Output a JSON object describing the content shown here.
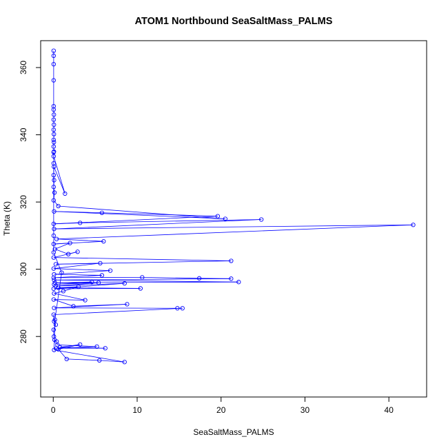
{
  "chart_data": {
    "type": "line",
    "title": "ATOM1 Northbound SeaSaltMass_PALMS",
    "xlabel": "SeaSaltMass_PALMS",
    "ylabel": "Theta (K)",
    "xlim": [
      -1.5,
      44.5
    ],
    "ylim": [
      262,
      368
    ],
    "xticks": [
      0,
      10,
      20,
      30,
      40
    ],
    "yticks": [
      280,
      300,
      320,
      340,
      360
    ],
    "grid": false,
    "legend": "none",
    "series_color": "#0000ff",
    "series": [
      {
        "marker": "open-circle",
        "points": [
          [
            0.05,
            365.0
          ],
          [
            0.05,
            363.5
          ],
          [
            0.05,
            361.0
          ],
          [
            0.05,
            356.2
          ],
          [
            0.05,
            348.5
          ],
          [
            0.05,
            347.5
          ],
          [
            0.08,
            346.0
          ],
          [
            0.05,
            344.5
          ],
          [
            0.08,
            343.0
          ],
          [
            0.05,
            341.5
          ],
          [
            0.08,
            340.2
          ],
          [
            0.05,
            338.5
          ],
          [
            0.08,
            337.8
          ],
          [
            0.05,
            336.5
          ],
          [
            0.08,
            335.0
          ],
          [
            0.05,
            333.6
          ],
          [
            1.4,
            322.5
          ],
          [
            0.08,
            330.5
          ],
          [
            0.05,
            328.0
          ],
          [
            0.1,
            326.5
          ],
          [
            0.05,
            324.5
          ],
          [
            0.15,
            322.8
          ],
          [
            0.05,
            320.5
          ],
          [
            0.6,
            318.8
          ],
          [
            20.5,
            315.0
          ],
          [
            0.1,
            317.2
          ],
          [
            5.8,
            316.8
          ],
          [
            19.6,
            315.8
          ],
          [
            0.05,
            313.5
          ],
          [
            3.2,
            313.8
          ],
          [
            24.8,
            314.8
          ],
          [
            0.1,
            312.0
          ],
          [
            42.9,
            313.2
          ],
          [
            0.4,
            309.0
          ],
          [
            6.0,
            308.3
          ],
          [
            0.05,
            307.5
          ],
          [
            2.0,
            307.8
          ],
          [
            0.2,
            306.0
          ],
          [
            1.8,
            304.5
          ],
          [
            2.9,
            305.2
          ],
          [
            0.05,
            303.5
          ],
          [
            21.2,
            302.5
          ],
          [
            0.3,
            301.5
          ],
          [
            5.6,
            301.8
          ],
          [
            0.05,
            300.2
          ],
          [
            6.8,
            299.6
          ],
          [
            0.1,
            298.5
          ],
          [
            5.8,
            298.2
          ],
          [
            0.05,
            297.5
          ],
          [
            10.6,
            297.6
          ],
          [
            17.4,
            297.3
          ],
          [
            21.2,
            297.2
          ],
          [
            0.1,
            296.8
          ],
          [
            22.1,
            296.2
          ],
          [
            0.2,
            296.0
          ],
          [
            4.6,
            296.2
          ],
          [
            0.1,
            295.5
          ],
          [
            5.4,
            296.0
          ],
          [
            0.3,
            295.0
          ],
          [
            8.5,
            295.8
          ],
          [
            0.05,
            294.2
          ],
          [
            10.4,
            294.3
          ],
          [
            0.6,
            294.5
          ],
          [
            3.0,
            294.8
          ],
          [
            1.2,
            293.5
          ],
          [
            0.1,
            292.8
          ],
          [
            3.8,
            290.8
          ],
          [
            0.05,
            291.0
          ],
          [
            2.4,
            289.0
          ],
          [
            8.8,
            289.6
          ],
          [
            0.1,
            288.5
          ],
          [
            14.8,
            288.4
          ],
          [
            15.4,
            288.4
          ],
          [
            0.05,
            286.5
          ],
          [
            0.1,
            284.5
          ],
          [
            0.3,
            283.5
          ],
          [
            0.05,
            282.0
          ],
          [
            0.08,
            280.0
          ],
          [
            0.15,
            279.0
          ],
          [
            0.4,
            278.5
          ],
          [
            0.5,
            277.5
          ],
          [
            5.2,
            277.0
          ],
          [
            0.4,
            276.5
          ],
          [
            6.2,
            276.5
          ],
          [
            0.8,
            276.8
          ],
          [
            3.2,
            277.6
          ],
          [
            0.6,
            276.2
          ],
          [
            1.6,
            273.3
          ],
          [
            5.5,
            272.9
          ],
          [
            8.5,
            272.4
          ],
          [
            0.1,
            276.0
          ],
          [
            0.2,
            285.0
          ],
          [
            1.0,
            299.0
          ],
          [
            0.05,
            305.0
          ],
          [
            0.05,
            310.0
          ],
          [
            0.05,
            331.5
          ],
          [
            0.05,
            334.8
          ]
        ]
      }
    ]
  }
}
